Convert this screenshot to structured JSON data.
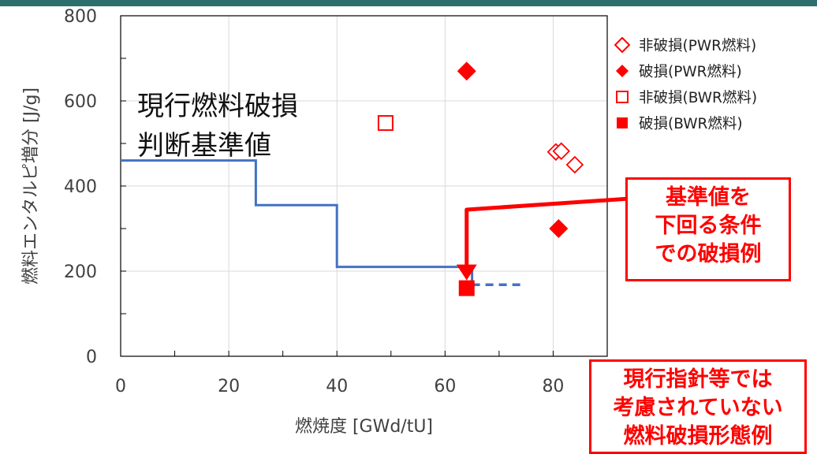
{
  "colors": {
    "top_rule": "#2e6e6e",
    "criterion_line": "#4472c4",
    "marker_red": "#ff0000",
    "arrow_red": "#ff0000",
    "note_border": "#ff0000",
    "note_text": "#ff0000",
    "grid": "#d9d9d9",
    "axis_text": "#404040"
  },
  "chart_data": {
    "type": "scatter",
    "xlabel": "燃焼度 [GWd/tU]",
    "ylabel": "燃料エンタルピ増分 [J/g]",
    "xlim": [
      0,
      90
    ],
    "ylim": [
      0,
      800
    ],
    "x_ticks": [
      "0",
      "20",
      "40",
      "60",
      "80"
    ],
    "y_ticks": [
      "0",
      "200",
      "400",
      "600",
      "800"
    ],
    "grid": true,
    "legend_position": "right",
    "series": [
      {
        "name": "非破損(PWR燃料)",
        "marker": "diamond-open",
        "points": [
          [
            80.5,
            480
          ],
          [
            81.5,
            482
          ],
          [
            84,
            450
          ]
        ]
      },
      {
        "name": "破損(PWR燃料)",
        "marker": "diamond-filled",
        "points": [
          [
            64,
            670
          ],
          [
            81,
            300
          ]
        ]
      },
      {
        "name": "非破損(BWR燃料)",
        "marker": "square-open",
        "points": [
          [
            49,
            548
          ]
        ]
      },
      {
        "name": "破損(BWR燃料)",
        "marker": "square-filled",
        "points": [
          [
            64,
            160
          ]
        ]
      }
    ],
    "criterion_line": {
      "label_lines": [
        "現行燃料破損",
        "判断基準値"
      ],
      "steps": [
        [
          0,
          460
        ],
        [
          25,
          460
        ],
        [
          25,
          355
        ],
        [
          40,
          355
        ],
        [
          40,
          210
        ],
        [
          65,
          210
        ],
        [
          65,
          170
        ]
      ],
      "dashed_extension": [
        [
          65,
          168
        ],
        [
          74,
          168
        ]
      ]
    },
    "annotations": [
      {
        "id": "below_criterion",
        "lines": [
          "基準値を",
          "下回る条件",
          "での破損例"
        ]
      },
      {
        "id": "not_considered",
        "lines": [
          "現行指針等では",
          "考慮されていない",
          "燃料破損形態例"
        ]
      }
    ]
  }
}
